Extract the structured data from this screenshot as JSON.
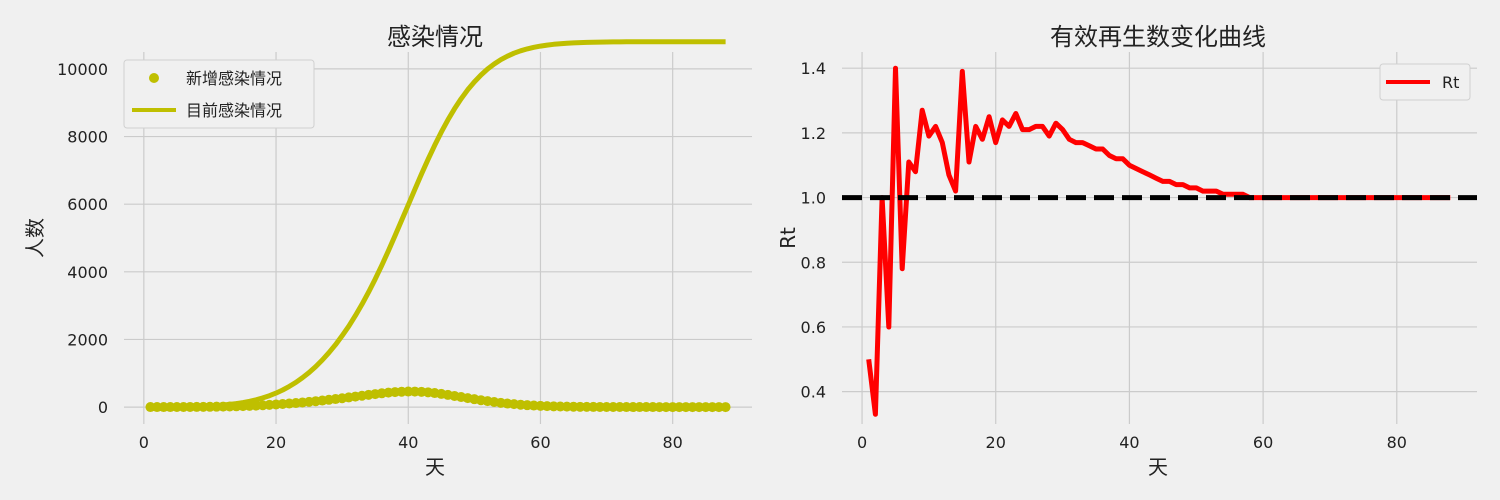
{
  "colors": {
    "background": "#f0f0f0",
    "grid": "#cbcbcb",
    "olive": "#bfbf00",
    "red": "#ff0000",
    "black": "#000000"
  },
  "chart_data": [
    {
      "type": "line",
      "title": "感染情况",
      "xlabel": "天",
      "ylabel": "人数",
      "xlim": [
        -3,
        92
      ],
      "ylim": [
        -500,
        10500
      ],
      "xticks": [
        0,
        20,
        40,
        60,
        80
      ],
      "yticks": [
        0,
        2000,
        4000,
        6000,
        8000,
        10000
      ],
      "grid": true,
      "legend": "top-left",
      "series": [
        {
          "name": "新增感染情况",
          "kind": "scatter",
          "color": "#bfbf00",
          "x": [
            1,
            2,
            3,
            4,
            5,
            6,
            7,
            8,
            9,
            10,
            11,
            12,
            13,
            14,
            15,
            16,
            17,
            18,
            19,
            20,
            21,
            22,
            23,
            24,
            25,
            26,
            27,
            28,
            29,
            30,
            31,
            32,
            33,
            34,
            35,
            36,
            37,
            38,
            39,
            40,
            41,
            42,
            43,
            44,
            45,
            46,
            47,
            48,
            49,
            50,
            51,
            52,
            53,
            54,
            55,
            56,
            57,
            58,
            59,
            60,
            61,
            62,
            63,
            64,
            65,
            66,
            67,
            68,
            69,
            70,
            71,
            72,
            73,
            74,
            75,
            76,
            77,
            78,
            79,
            80,
            81,
            82,
            83,
            84,
            85,
            86,
            87,
            88
          ],
          "y": [
            1,
            1,
            1,
            1,
            2,
            3,
            4,
            5,
            7,
            9,
            12,
            15,
            19,
            24,
            30,
            37,
            45,
            55,
            66,
            78,
            91,
            105,
            120,
            137,
            155,
            174,
            194,
            216,
            238,
            262,
            286,
            311,
            336,
            361,
            385,
            408,
            428,
            444,
            455,
            460,
            459,
            451,
            436,
            415,
            389,
            360,
            329,
            297,
            265,
            234,
            204,
            176,
            150,
            126,
            105,
            87,
            71,
            57,
            46,
            37,
            29,
            23,
            18,
            14,
            11,
            8,
            6,
            5,
            4,
            3,
            2,
            2,
            1,
            1,
            1,
            1,
            1,
            0,
            0,
            0,
            0,
            0,
            0,
            0,
            0,
            0,
            0,
            0
          ]
        },
        {
          "name": "目前感染情况",
          "kind": "line",
          "color": "#bfbf00",
          "x": [
            1,
            2,
            3,
            4,
            5,
            6,
            7,
            8,
            9,
            10,
            11,
            12,
            13,
            14,
            15,
            16,
            17,
            18,
            19,
            20,
            21,
            22,
            23,
            24,
            25,
            26,
            27,
            28,
            29,
            30,
            31,
            32,
            33,
            34,
            35,
            36,
            37,
            38,
            39,
            40,
            41,
            42,
            43,
            44,
            45,
            46,
            47,
            48,
            49,
            50,
            51,
            52,
            53,
            54,
            55,
            56,
            57,
            58,
            59,
            60,
            61,
            62,
            63,
            64,
            65,
            66,
            67,
            68,
            69,
            70,
            71,
            72,
            73,
            74,
            75,
            76,
            77,
            78,
            79,
            80,
            81,
            82,
            83,
            84,
            85,
            86,
            87,
            88
          ],
          "y": [
            1,
            2,
            3,
            4,
            6,
            9,
            13,
            18,
            25,
            34,
            46,
            61,
            80,
            104,
            134,
            171,
            216,
            271,
            337,
            415,
            506,
            611,
            731,
            868,
            1023,
            1197,
            1391,
            1607,
            1845,
            2107,
            2393,
            2704,
            3040,
            3401,
            3786,
            4194,
            4622,
            5066,
            5521,
            5981,
            6440,
            6891,
            7327,
            7742,
            8131,
            8491,
            8820,
            9117,
            9382,
            9616,
            9820,
            9996,
            10146,
            10272,
            10377,
            10464,
            10535,
            10592,
            10638,
            10675,
            10704,
            10727,
            10745,
            10759,
            10770,
            10778,
            10784,
            10789,
            10793,
            10796,
            10798,
            10800,
            10801,
            10802,
            10803,
            10804,
            10805,
            10805,
            10805,
            10805,
            10805,
            10805,
            10805,
            10805,
            10805,
            10805,
            10805,
            10805
          ]
        }
      ]
    },
    {
      "type": "line",
      "title": "有效再生数变化曲线",
      "xlabel": "天",
      "ylabel": "Rt",
      "xlim": [
        -3,
        92
      ],
      "ylim": [
        0.3,
        1.45
      ],
      "xticks": [
        0,
        20,
        40,
        60,
        80
      ],
      "yticks": [
        0.4,
        0.6,
        0.8,
        1.0,
        1.2,
        1.4
      ],
      "grid": true,
      "legend": "top-right",
      "reference_line": 1.0,
      "series": [
        {
          "name": "Rt",
          "kind": "line",
          "color": "#ff0000",
          "x": [
            1,
            2,
            3,
            4,
            5,
            6,
            7,
            8,
            9,
            10,
            11,
            12,
            13,
            14,
            15,
            16,
            17,
            18,
            19,
            20,
            21,
            22,
            23,
            24,
            25,
            26,
            27,
            28,
            29,
            30,
            31,
            32,
            33,
            34,
            35,
            36,
            37,
            38,
            39,
            40,
            41,
            42,
            43,
            44,
            45,
            46,
            47,
            48,
            49,
            50,
            51,
            52,
            53,
            54,
            55,
            56,
            57,
            58,
            59,
            60,
            61,
            62,
            63,
            64,
            65,
            66,
            67,
            68,
            69,
            70,
            71,
            72,
            73,
            74,
            75,
            76,
            77,
            78,
            79,
            80,
            81,
            82,
            83,
            84,
            85,
            86,
            87,
            88
          ],
          "y": [
            0.5,
            0.33,
            1.0,
            0.6,
            1.4,
            0.78,
            1.11,
            1.08,
            1.27,
            1.19,
            1.22,
            1.17,
            1.07,
            1.02,
            1.39,
            1.11,
            1.22,
            1.18,
            1.25,
            1.17,
            1.24,
            1.22,
            1.26,
            1.21,
            1.21,
            1.22,
            1.22,
            1.19,
            1.23,
            1.21,
            1.18,
            1.17,
            1.17,
            1.16,
            1.15,
            1.15,
            1.13,
            1.12,
            1.12,
            1.1,
            1.09,
            1.08,
            1.07,
            1.06,
            1.05,
            1.05,
            1.04,
            1.04,
            1.03,
            1.03,
            1.02,
            1.02,
            1.02,
            1.01,
            1.01,
            1.01,
            1.01,
            1.0,
            1.0,
            1.0,
            1.0,
            1.0,
            1.0,
            1.0,
            1.0,
            1.0,
            1.0,
            1.0,
            1.0,
            1.0,
            1.0,
            1.0,
            1.0,
            1.0,
            1.0,
            1.0,
            1.0,
            1.0,
            1.0,
            1.0,
            1.0,
            1.0,
            1.0,
            1.0,
            1.0,
            1.0,
            1.0,
            1.0
          ]
        }
      ]
    }
  ]
}
